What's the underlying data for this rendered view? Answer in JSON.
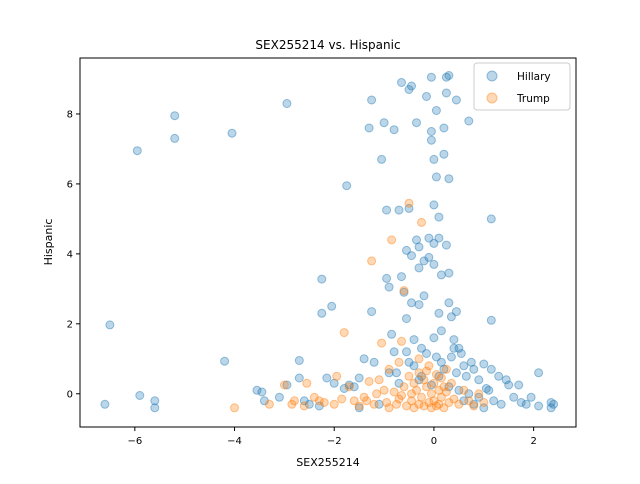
{
  "chart_data": {
    "type": "scatter",
    "title": "SEX255214 vs. Hispanic",
    "xlabel": "SEX255214",
    "ylabel": "Hispanic",
    "xlim": [
      -7.1,
      2.85
    ],
    "ylim": [
      -0.95,
      9.6
    ],
    "xticks": [
      -6,
      -4,
      -2,
      0,
      2
    ],
    "yticks": [
      0,
      2,
      4,
      6,
      8
    ],
    "grid": false,
    "legend": "top-right",
    "series": [
      {
        "name": "Hillary",
        "color": "#1f77b4",
        "points": [
          [
            -6.6,
            -0.3
          ],
          [
            -6.5,
            1.97
          ],
          [
            -5.95,
            6.95
          ],
          [
            -5.9,
            -0.05
          ],
          [
            -5.6,
            -0.2
          ],
          [
            -5.6,
            -0.4
          ],
          [
            -5.2,
            7.95
          ],
          [
            -5.2,
            7.3
          ],
          [
            -4.2,
            0.93
          ],
          [
            -4.05,
            7.45
          ],
          [
            -3.55,
            0.1
          ],
          [
            -3.45,
            0.05
          ],
          [
            -3.4,
            -0.2
          ],
          [
            -3.1,
            -0.1
          ],
          [
            -2.95,
            0.25
          ],
          [
            -2.95,
            8.3
          ],
          [
            -2.7,
            0.45
          ],
          [
            -2.7,
            0.95
          ],
          [
            -2.6,
            -0.2
          ],
          [
            -2.5,
            -0.3
          ],
          [
            -2.3,
            -0.35
          ],
          [
            -2.25,
            2.3
          ],
          [
            -2.25,
            3.28
          ],
          [
            -2.15,
            0.45
          ],
          [
            -2.05,
            2.5
          ],
          [
            -1.8,
            0.15
          ],
          [
            -1.75,
            5.95
          ],
          [
            -1.7,
            0.25
          ],
          [
            -1.6,
            0.2
          ],
          [
            -1.5,
            0.45
          ],
          [
            -1.4,
            1.0
          ],
          [
            -1.3,
            7.6
          ],
          [
            -1.25,
            8.4
          ],
          [
            -1.25,
            2.35
          ],
          [
            -1.2,
            0.9
          ],
          [
            -1.05,
            6.7
          ],
          [
            -1.0,
            7.75
          ],
          [
            -0.95,
            3.3
          ],
          [
            -0.95,
            5.25
          ],
          [
            -0.9,
            3.05
          ],
          [
            -0.85,
            1.7
          ],
          [
            -0.8,
            7.55
          ],
          [
            -0.8,
            1.2
          ],
          [
            -0.75,
            0.6
          ],
          [
            -0.7,
            5.25
          ],
          [
            -0.65,
            8.9
          ],
          [
            -0.65,
            3.35
          ],
          [
            -0.6,
            2.9
          ],
          [
            -0.55,
            4.1
          ],
          [
            -0.55,
            2.15
          ],
          [
            -0.55,
            1.2
          ],
          [
            -0.5,
            8.7
          ],
          [
            -0.5,
            5.3
          ],
          [
            -0.45,
            8.8
          ],
          [
            -0.45,
            3.95
          ],
          [
            -0.45,
            2.6
          ],
          [
            -0.4,
            1.55
          ],
          [
            -0.4,
            0.8
          ],
          [
            -0.35,
            7.75
          ],
          [
            -0.35,
            4.4
          ],
          [
            -0.3,
            4.2
          ],
          [
            -0.3,
            3.6
          ],
          [
            -0.3,
            2.55
          ],
          [
            -0.25,
            1.3
          ],
          [
            -0.25,
            0.5
          ],
          [
            -0.2,
            3.8
          ],
          [
            -0.2,
            2.8
          ],
          [
            -0.15,
            8.5
          ],
          [
            -0.15,
            1.15
          ],
          [
            -0.1,
            4.45
          ],
          [
            -0.1,
            3.9
          ],
          [
            -0.05,
            9.05
          ],
          [
            -0.05,
            7.5
          ],
          [
            -0.05,
            7.25
          ],
          [
            -0.05,
            0.25
          ],
          [
            0.0,
            6.7
          ],
          [
            0.0,
            5.4
          ],
          [
            0.0,
            4.3
          ],
          [
            0.0,
            3.7
          ],
          [
            0.05,
            8.1
          ],
          [
            0.05,
            6.2
          ],
          [
            0.05,
            1.05
          ],
          [
            0.1,
            5.05
          ],
          [
            0.1,
            4.45
          ],
          [
            0.1,
            2.3
          ],
          [
            0.15,
            3.4
          ],
          [
            0.15,
            1.8
          ],
          [
            0.2,
            7.6
          ],
          [
            0.2,
            6.85
          ],
          [
            0.25,
            9.05
          ],
          [
            0.25,
            8.6
          ],
          [
            0.25,
            4.25
          ],
          [
            0.3,
            9.1
          ],
          [
            0.3,
            3.45
          ],
          [
            0.3,
            6.15
          ],
          [
            0.3,
            2.6
          ],
          [
            0.35,
            2.2
          ],
          [
            0.35,
            1.05
          ],
          [
            0.4,
            1.55
          ],
          [
            0.4,
            1.3
          ],
          [
            0.45,
            8.4
          ],
          [
            0.45,
            2.35
          ],
          [
            0.5,
            1.3
          ],
          [
            0.55,
            1.15
          ],
          [
            0.6,
            0.8
          ],
          [
            0.65,
            0.5
          ],
          [
            0.7,
            7.8
          ],
          [
            0.75,
            0.9
          ],
          [
            0.8,
            0.7
          ],
          [
            0.9,
            0.4
          ],
          [
            1.0,
            0.85
          ],
          [
            1.05,
            0.15
          ],
          [
            1.15,
            5.0
          ],
          [
            1.15,
            2.1
          ],
          [
            1.15,
            0.7
          ],
          [
            1.2,
            -0.2
          ],
          [
            1.3,
            0.5
          ],
          [
            1.35,
            -0.3
          ],
          [
            1.45,
            0.4
          ],
          [
            1.5,
            0.25
          ],
          [
            1.6,
            -0.1
          ],
          [
            1.7,
            0.25
          ],
          [
            1.75,
            -0.25
          ],
          [
            1.85,
            -0.3
          ],
          [
            1.95,
            -0.1
          ],
          [
            2.1,
            0.6
          ],
          [
            2.1,
            -0.35
          ],
          [
            2.35,
            -0.4
          ],
          [
            2.35,
            -0.25
          ],
          [
            2.4,
            -0.3
          ],
          [
            0.1,
            0.5
          ],
          [
            0.2,
            0.7
          ],
          [
            0.3,
            0.2
          ],
          [
            0.5,
            0.1
          ],
          [
            0.7,
            0.0
          ],
          [
            0.9,
            -0.1
          ],
          [
            1.1,
            0.1
          ],
          [
            -0.9,
            0.6
          ],
          [
            -0.7,
            0.3
          ],
          [
            -0.5,
            0.9
          ],
          [
            -0.3,
            0.4
          ],
          [
            0.0,
            1.6
          ],
          [
            0.15,
            0.9
          ],
          [
            0.45,
            0.6
          ],
          [
            0.6,
            -0.2
          ],
          [
            0.8,
            -0.3
          ],
          [
            1.0,
            -0.4
          ],
          [
            -1.1,
            -0.3
          ],
          [
            -1.5,
            -0.4
          ],
          [
            -2.0,
            0.3
          ]
        ]
      },
      {
        "name": "Trump",
        "color": "#ff7f0e",
        "points": [
          [
            -4.0,
            -0.4
          ],
          [
            -3.3,
            -0.3
          ],
          [
            -3.0,
            0.25
          ],
          [
            -2.85,
            -0.3
          ],
          [
            -2.8,
            -0.2
          ],
          [
            -2.6,
            -0.35
          ],
          [
            -2.55,
            0.3
          ],
          [
            -2.4,
            -0.1
          ],
          [
            -2.2,
            -0.25
          ],
          [
            -2.0,
            -0.3
          ],
          [
            -1.95,
            0.5
          ],
          [
            -1.8,
            1.75
          ],
          [
            -1.7,
            0.2
          ],
          [
            -1.6,
            -0.2
          ],
          [
            -1.5,
            -0.35
          ],
          [
            -1.4,
            -0.1
          ],
          [
            -1.3,
            0.35
          ],
          [
            -1.25,
            3.8
          ],
          [
            -1.2,
            -0.3
          ],
          [
            -1.1,
            0.4
          ],
          [
            -1.05,
            1.45
          ],
          [
            -1.0,
            0.1
          ],
          [
            -0.95,
            -0.25
          ],
          [
            -0.9,
            0.7
          ],
          [
            -0.9,
            -0.4
          ],
          [
            -0.85,
            4.4
          ],
          [
            -0.8,
            0.05
          ],
          [
            -0.75,
            -0.3
          ],
          [
            -0.7,
            0.9
          ],
          [
            -0.7,
            -0.15
          ],
          [
            -0.65,
            1.5
          ],
          [
            -0.6,
            2.95
          ],
          [
            -0.6,
            0.2
          ],
          [
            -0.55,
            -0.35
          ],
          [
            -0.5,
            5.45
          ],
          [
            -0.5,
            0.5
          ],
          [
            -0.45,
            -0.2
          ],
          [
            -0.4,
            0.3
          ],
          [
            -0.4,
            -0.4
          ],
          [
            -0.35,
            0.1
          ],
          [
            -0.3,
            0.6
          ],
          [
            -0.3,
            -0.3
          ],
          [
            -0.25,
            -0.1
          ],
          [
            -0.2,
            0.4
          ],
          [
            -0.2,
            -0.35
          ],
          [
            -0.15,
            0.2
          ],
          [
            -0.1,
            -0.25
          ],
          [
            -0.1,
            0.8
          ],
          [
            -0.05,
            0.0
          ],
          [
            -0.05,
            -0.4
          ],
          [
            0.0,
            0.3
          ],
          [
            0.0,
            -0.2
          ],
          [
            0.05,
            0.55
          ],
          [
            0.05,
            -0.35
          ],
          [
            0.1,
            0.1
          ],
          [
            0.1,
            -0.3
          ],
          [
            0.15,
            0.45
          ],
          [
            0.15,
            -0.1
          ],
          [
            0.2,
            0.2
          ],
          [
            0.2,
            -0.4
          ],
          [
            0.25,
            0.05
          ],
          [
            0.3,
            -0.25
          ],
          [
            0.35,
            0.3
          ],
          [
            0.4,
            -0.15
          ],
          [
            0.5,
            -0.3
          ],
          [
            0.6,
            0.1
          ],
          [
            0.7,
            -0.2
          ],
          [
            0.8,
            -0.35
          ],
          [
            0.9,
            0.0
          ],
          [
            1.0,
            -0.25
          ],
          [
            -0.25,
            4.9
          ],
          [
            -0.3,
            1.0
          ],
          [
            -0.45,
            0.0
          ],
          [
            -0.65,
            -0.05
          ],
          [
            -1.15,
            0.0
          ],
          [
            -1.35,
            -0.2
          ],
          [
            -1.85,
            -0.15
          ],
          [
            -2.3,
            -0.2
          ],
          [
            -0.15,
            0.65
          ],
          [
            0.25,
            0.7
          ]
        ]
      }
    ]
  }
}
